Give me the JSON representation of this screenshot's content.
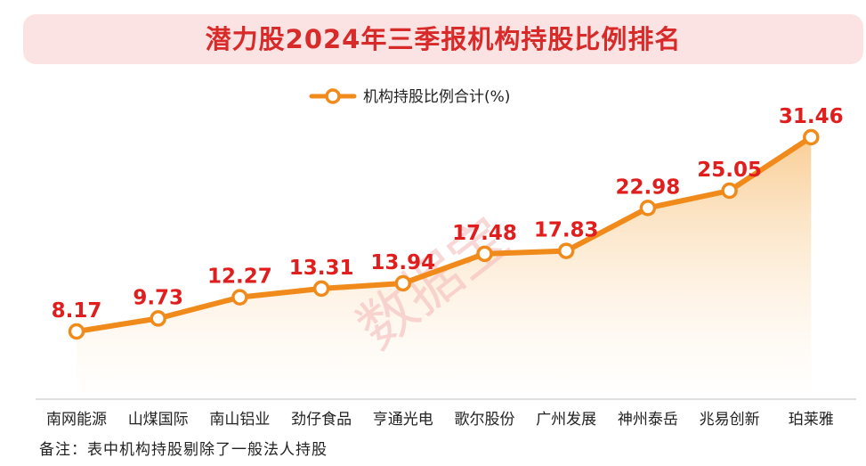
{
  "title": "潜力股2024年三季报机构持股比例排名",
  "footnote": "备注：表中机构持股剔除了一般法人持股",
  "watermark": "数据宝",
  "colors": {
    "line": "#f08a1a",
    "marker_fill": "#ffffff",
    "value_label": "#e01e1e",
    "title": "#d92a2a",
    "title_bg": "#fbe3e3",
    "axis": "#bdbdbd"
  },
  "chart_data": {
    "type": "line",
    "categories": [
      "南网能源",
      "山煤国际",
      "南山铝业",
      "劲仔食品",
      "亨通光电",
      "歌尔股份",
      "广州发展",
      "神州泰岳",
      "兆易创新",
      "珀莱雅"
    ],
    "series": [
      {
        "name": "机构持股比例合计(%)",
        "values": [
          8.17,
          9.73,
          12.27,
          13.31,
          13.94,
          17.48,
          17.83,
          22.98,
          25.05,
          31.46
        ]
      }
    ],
    "value_labels": [
      "8.17",
      "9.73",
      "12.27",
      "13.31",
      "13.94",
      "17.48",
      "17.83",
      "22.98",
      "25.05",
      "31.46"
    ],
    "legend_position": "top-center",
    "area_fill": true,
    "grid": false
  }
}
